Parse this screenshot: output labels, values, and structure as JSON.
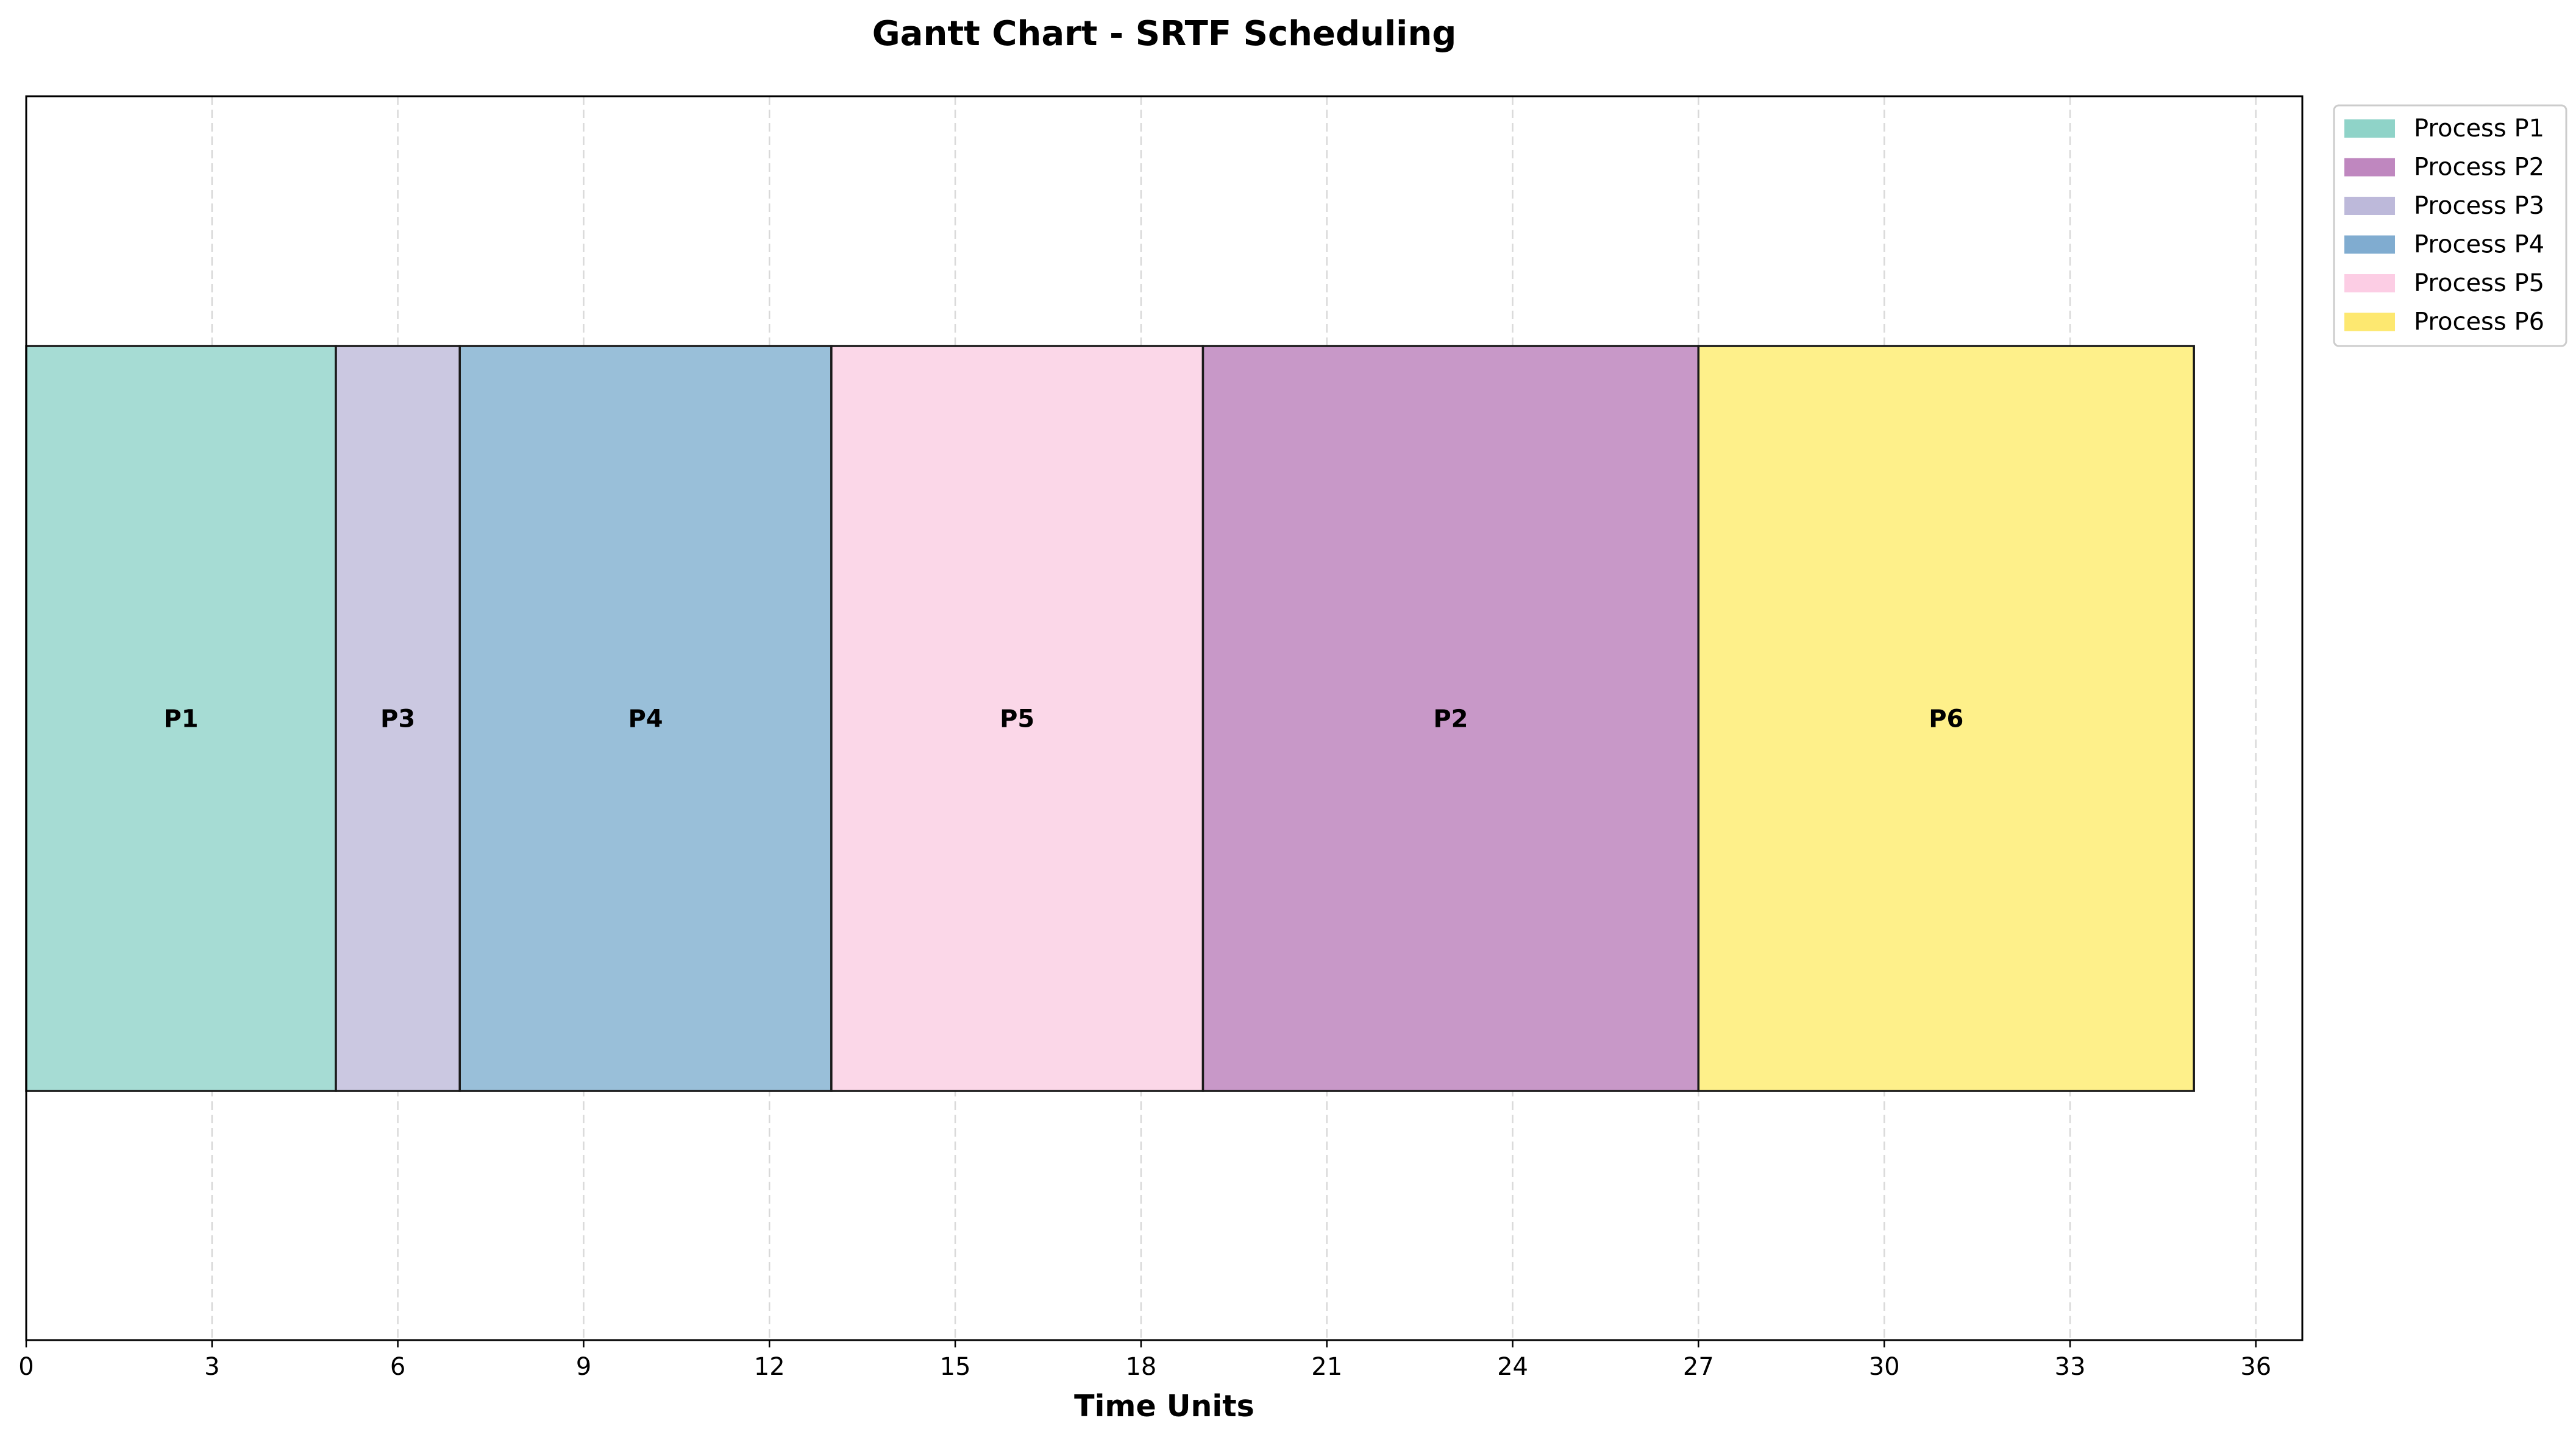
{
  "chart_data": {
    "type": "gantt",
    "title": "Gantt Chart - SRTF Scheduling",
    "xlabel": "Time Units",
    "ylabel": "",
    "xlim": [
      0,
      36.75
    ],
    "xticks": [
      0,
      3,
      6,
      9,
      12,
      15,
      18,
      21,
      24,
      27,
      30,
      33,
      36
    ],
    "grid": "x-dashed",
    "legend_position": "upper-right-outside",
    "segments": [
      {
        "process": "P1",
        "start": 0,
        "end": 5,
        "color": "#a6dcd4"
      },
      {
        "process": "P3",
        "start": 5,
        "end": 7,
        "color": "#cbc8e1"
      },
      {
        "process": "P4",
        "start": 7,
        "end": 13,
        "color": "#99bfd9"
      },
      {
        "process": "P5",
        "start": 13,
        "end": 19,
        "color": "#fbd7e8"
      },
      {
        "process": "P2",
        "start": 19,
        "end": 27,
        "color": "#c898c8"
      },
      {
        "process": "P6",
        "start": 27,
        "end": 35,
        "color": "#fef08a"
      }
    ],
    "legend": [
      {
        "label": "Process P1",
        "color": "#8fd3c8"
      },
      {
        "label": "Process P2",
        "color": "#bf87bf"
      },
      {
        "label": "Process P3",
        "color": "#bdb9da"
      },
      {
        "label": "Process P4",
        "color": "#80acd0"
      },
      {
        "label": "Process P5",
        "color": "#fccde4"
      },
      {
        "label": "Process P6",
        "color": "#fde870"
      }
    ]
  }
}
